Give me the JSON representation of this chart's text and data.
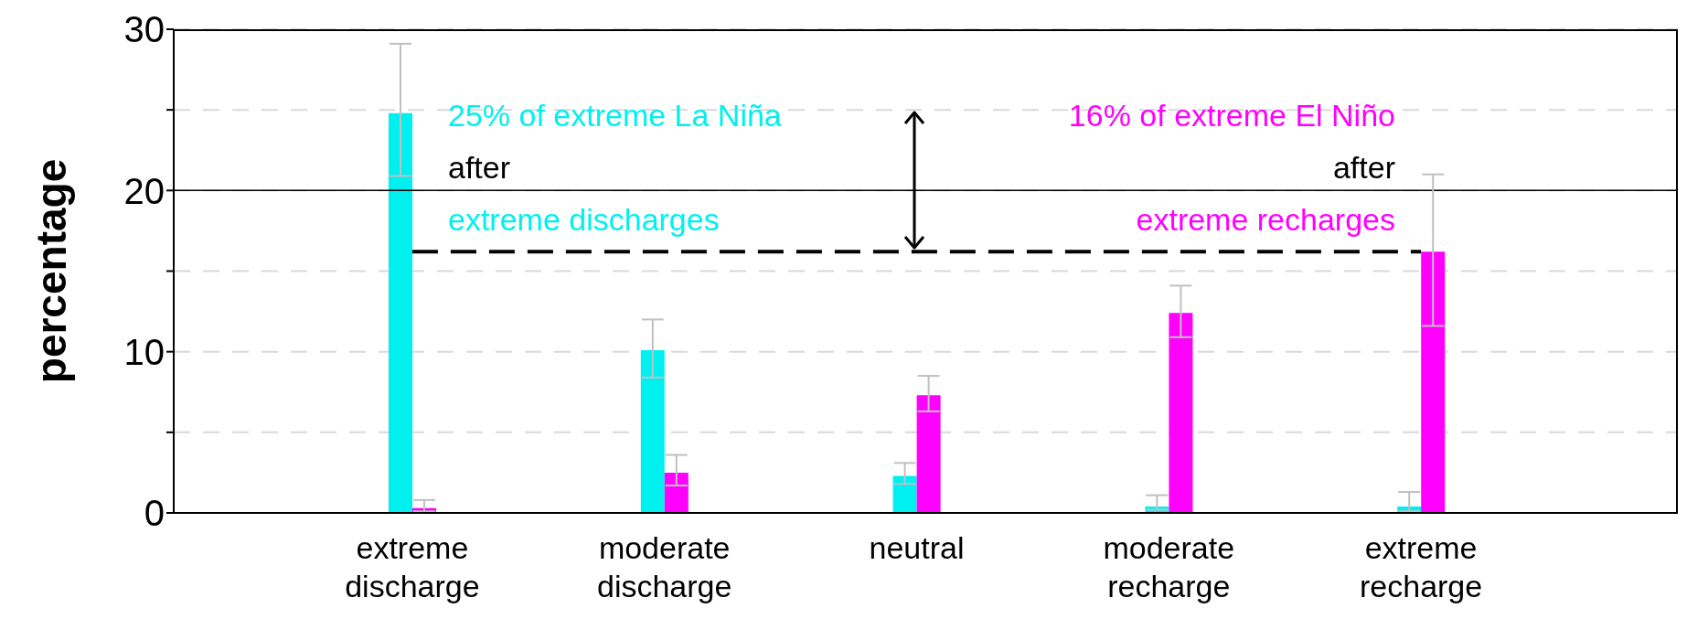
{
  "chart_data": {
    "type": "bar",
    "ylabel": "percentage",
    "categories": [
      "extreme\ndischarge",
      "moderate\ndischarge",
      "neutral",
      "moderate\nrecharge",
      "extreme\nrecharge"
    ],
    "series": [
      {
        "color": "#00f0f0",
        "values": [
          24.8,
          10.1,
          2.3,
          0.4,
          0.4
        ],
        "errors": [
          [
            20.9,
            29.1
          ],
          [
            8.4,
            12.0
          ],
          [
            1.8,
            3.1
          ],
          [
            0.2,
            1.1
          ],
          [
            0.1,
            1.3
          ]
        ]
      },
      {
        "color": "#ff00ff",
        "values": [
          0.3,
          2.5,
          7.3,
          12.4,
          16.2
        ],
        "errors": [
          [
            0.1,
            0.8
          ],
          [
            1.7,
            3.6
          ],
          [
            6.3,
            8.5
          ],
          [
            10.9,
            14.1
          ],
          [
            11.6,
            21.0
          ]
        ]
      },
      {
        "type": "line",
        "color": "#000000",
        "line_style": "dashed",
        "marker": "none",
        "values": [
          16.2,
          16.2,
          16.2,
          16.2,
          16.2
        ]
      }
    ],
    "ylim": [
      0,
      30
    ],
    "yticks": [
      0,
      {
        "value": 5,
        "label": null
      },
      10,
      {
        "value": 15,
        "label": null
      },
      20,
      {
        "value": 25,
        "label": null
      },
      30
    ],
    "grid": "y",
    "ref_lines": [
      {
        "axis": "y",
        "value": 20,
        "color": "#000000",
        "line_style": "solid"
      }
    ],
    "annotations": [
      "25% of extreme La Niña",
      "after",
      "extreme discharges",
      "16% of extreme El Niño",
      "after",
      "extreme recharges"
    ]
  }
}
